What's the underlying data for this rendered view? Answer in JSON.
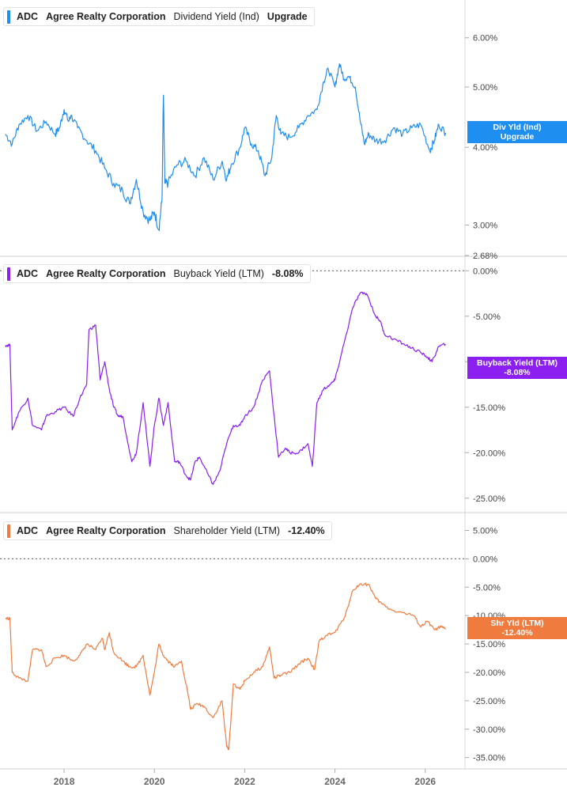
{
  "chart_data": [
    {
      "type": "line",
      "ticker": "ADC",
      "company": "Agree Realty Corporation",
      "series_name": "Dividend Yield (Ind)",
      "legend_value": "Upgrade",
      "badge_lines": [
        "Div Yld (Ind)",
        "Upgrade"
      ],
      "color": "#1f8ef1",
      "scale": "log",
      "ylim": [
        2.68,
        6.9
      ],
      "yticks": [
        "6.00%",
        "5.00%",
        "4.00%",
        "3.00%",
        "2.68%"
      ],
      "ytick_values": [
        6.0,
        5.0,
        4.0,
        3.0,
        2.68
      ],
      "badge_value": 4.22,
      "x": [
        2016.7,
        2016.85,
        2017.0,
        2017.2,
        2017.4,
        2017.6,
        2017.8,
        2017.9,
        2018.0,
        2018.1,
        2018.15,
        2018.3,
        2018.5,
        2018.7,
        2018.9,
        2019.1,
        2019.3,
        2019.45,
        2019.6,
        2019.75,
        2019.9,
        2020.0,
        2020.1,
        2020.17,
        2020.2,
        2020.23,
        2020.3,
        2020.5,
        2020.7,
        2020.9,
        2021.1,
        2021.3,
        2021.5,
        2021.6,
        2021.7,
        2021.9,
        2022.0,
        2022.15,
        2022.3,
        2022.45,
        2022.6,
        2022.7,
        2022.8,
        2023.0,
        2023.2,
        2023.4,
        2023.6,
        2023.75,
        2023.85,
        2024.0,
        2024.1,
        2024.2,
        2024.3,
        2024.45,
        2024.55,
        2024.65,
        2024.75,
        2024.9,
        2025.1,
        2025.3,
        2025.5,
        2025.7,
        2025.9,
        2026.1,
        2026.2,
        2026.3,
        2026.45
      ],
      "y": [
        4.2,
        4.05,
        4.35,
        4.5,
        4.25,
        4.4,
        4.2,
        4.3,
        4.6,
        4.4,
        4.5,
        4.3,
        4.1,
        3.95,
        3.7,
        3.5,
        3.4,
        3.25,
        3.55,
        3.15,
        3.05,
        3.15,
        2.95,
        3.3,
        4.85,
        3.5,
        3.5,
        3.75,
        3.8,
        3.6,
        3.85,
        3.55,
        3.8,
        3.55,
        3.75,
        4.0,
        4.3,
        4.05,
        3.95,
        3.6,
        3.85,
        4.5,
        4.2,
        4.15,
        4.3,
        4.5,
        4.6,
        5.1,
        5.35,
        5.0,
        5.45,
        5.15,
        5.2,
        5.0,
        4.45,
        4.05,
        4.2,
        4.1,
        4.1,
        4.3,
        4.2,
        4.3,
        4.35,
        3.95,
        4.1,
        4.35,
        4.22
      ]
    },
    {
      "type": "line",
      "ticker": "ADC",
      "company": "Agree Realty Corporation",
      "series_name": "Buyback Yield (LTM)",
      "legend_value": "-8.08%",
      "badge_lines": [
        "Buyback Yield (LTM)",
        "-8.08%"
      ],
      "color": "#8a1ff0",
      "scale": "linear",
      "ylim": [
        -26.5,
        1.5
      ],
      "yticks": [
        "0.00%",
        "-5.00%",
        "-10.00%",
        "-15.00%",
        "-20.00%",
        "-25.00%"
      ],
      "ytick_values": [
        0,
        -5,
        -10,
        -15,
        -20,
        -25
      ],
      "badge_value": -8.08,
      "x": [
        2016.7,
        2016.8,
        2016.85,
        2017.0,
        2017.2,
        2017.3,
        2017.5,
        2017.6,
        2017.8,
        2018.0,
        2018.2,
        2018.35,
        2018.5,
        2018.55,
        2018.7,
        2018.8,
        2018.9,
        2019.0,
        2019.1,
        2019.2,
        2019.3,
        2019.5,
        2019.6,
        2019.75,
        2019.9,
        2020.0,
        2020.1,
        2020.2,
        2020.3,
        2020.45,
        2020.55,
        2020.7,
        2020.8,
        2020.9,
        2021.0,
        2021.2,
        2021.3,
        2021.45,
        2021.6,
        2021.75,
        2021.9,
        2022.0,
        2022.2,
        2022.4,
        2022.55,
        2022.6,
        2022.75,
        2022.9,
        2023.0,
        2023.2,
        2023.4,
        2023.5,
        2023.6,
        2023.75,
        2023.9,
        2024.0,
        2024.2,
        2024.4,
        2024.55,
        2024.7,
        2024.9,
        2025.0,
        2025.1,
        2025.3,
        2025.5,
        2025.7,
        2025.9,
        2026.05,
        2026.15,
        2026.3,
        2026.45
      ],
      "y": [
        -8.2,
        -8.2,
        -17.5,
        -15.5,
        -14.0,
        -17.0,
        -17.5,
        -16.0,
        -15.5,
        -15.0,
        -16.0,
        -14.0,
        -12.5,
        -6.5,
        -6.0,
        -12.0,
        -10.0,
        -13.0,
        -15.0,
        -16.0,
        -16.0,
        -21.0,
        -20.0,
        -14.5,
        -21.5,
        -17.0,
        -14.0,
        -17.0,
        -14.5,
        -21.0,
        -21.0,
        -22.5,
        -23.0,
        -21.0,
        -20.5,
        -22.5,
        -23.5,
        -22.0,
        -19.0,
        -17.0,
        -17.0,
        -16.0,
        -15.0,
        -12.0,
        -11.0,
        -13.5,
        -20.5,
        -19.5,
        -20.0,
        -20.0,
        -19.0,
        -21.5,
        -14.5,
        -13.0,
        -12.5,
        -12.0,
        -8.0,
        -4.0,
        -2.5,
        -2.5,
        -5.0,
        -5.5,
        -7.0,
        -7.5,
        -8.0,
        -8.5,
        -9.0,
        -9.5,
        -10.0,
        -8.3,
        -8.08
      ]
    },
    {
      "type": "line",
      "ticker": "ADC",
      "company": "Agree Realty Corporation",
      "series_name": "Shareholder Yield (LTM)",
      "legend_value": "-12.40%",
      "badge_lines": [
        "Shr Yld (LTM)",
        "-12.40%"
      ],
      "color": "#f07b3f",
      "scale": "linear",
      "ylim": [
        -37,
        8
      ],
      "yticks": [
        "5.00%",
        "0.00%",
        "-5.00%",
        "-10.00%",
        "-15.00%",
        "-20.00%",
        "-25.00%",
        "-30.00%",
        "-35.00%"
      ],
      "ytick_values": [
        5,
        0,
        -5,
        -10,
        -15,
        -20,
        -25,
        -30,
        -35
      ],
      "badge_value": -12.4,
      "x": [
        2016.7,
        2016.8,
        2016.85,
        2017.0,
        2017.2,
        2017.3,
        2017.5,
        2017.6,
        2017.8,
        2018.0,
        2018.2,
        2018.35,
        2018.5,
        2018.7,
        2018.85,
        2018.9,
        2019.0,
        2019.1,
        2019.3,
        2019.45,
        2019.6,
        2019.75,
        2019.9,
        2020.0,
        2020.1,
        2020.2,
        2020.3,
        2020.45,
        2020.6,
        2020.75,
        2020.8,
        2020.95,
        2021.1,
        2021.3,
        2021.5,
        2021.6,
        2021.65,
        2021.75,
        2021.9,
        2022.0,
        2022.2,
        2022.4,
        2022.55,
        2022.65,
        2022.8,
        2023.0,
        2023.2,
        2023.4,
        2023.55,
        2023.65,
        2023.8,
        2024.0,
        2024.2,
        2024.4,
        2024.55,
        2024.75,
        2024.9,
        2025.05,
        2025.25,
        2025.5,
        2025.75,
        2025.9,
        2026.05,
        2026.2,
        2026.35,
        2026.45
      ],
      "y": [
        -10.5,
        -10.5,
        -20.0,
        -21.0,
        -21.5,
        -16.0,
        -16.0,
        -19.0,
        -17.5,
        -17.0,
        -18.0,
        -17.0,
        -15.0,
        -16.0,
        -14.0,
        -16.0,
        -13.0,
        -16.5,
        -18.0,
        -19.0,
        -19.0,
        -17.0,
        -24.0,
        -20.0,
        -15.0,
        -17.0,
        -18.0,
        -19.0,
        -18.0,
        -24.0,
        -26.5,
        -25.5,
        -26.0,
        -28.0,
        -25.0,
        -33.0,
        -33.5,
        -22.0,
        -23.0,
        -21.5,
        -20.0,
        -19.0,
        -15.5,
        -21.0,
        -20.5,
        -20.0,
        -18.5,
        -17.5,
        -19.5,
        -14.5,
        -13.5,
        -13.0,
        -10.5,
        -5.5,
        -4.5,
        -4.5,
        -7.0,
        -8.0,
        -9.0,
        -9.5,
        -10.0,
        -12.0,
        -11.0,
        -12.5,
        -12.0,
        -12.4
      ]
    }
  ],
  "x_axis": {
    "labels": [
      "2018",
      "2020",
      "2022",
      "2024",
      "2026"
    ],
    "values": [
      2018,
      2020,
      2022,
      2024,
      2026
    ],
    "xlim": [
      2016.58,
      2026.88
    ]
  }
}
